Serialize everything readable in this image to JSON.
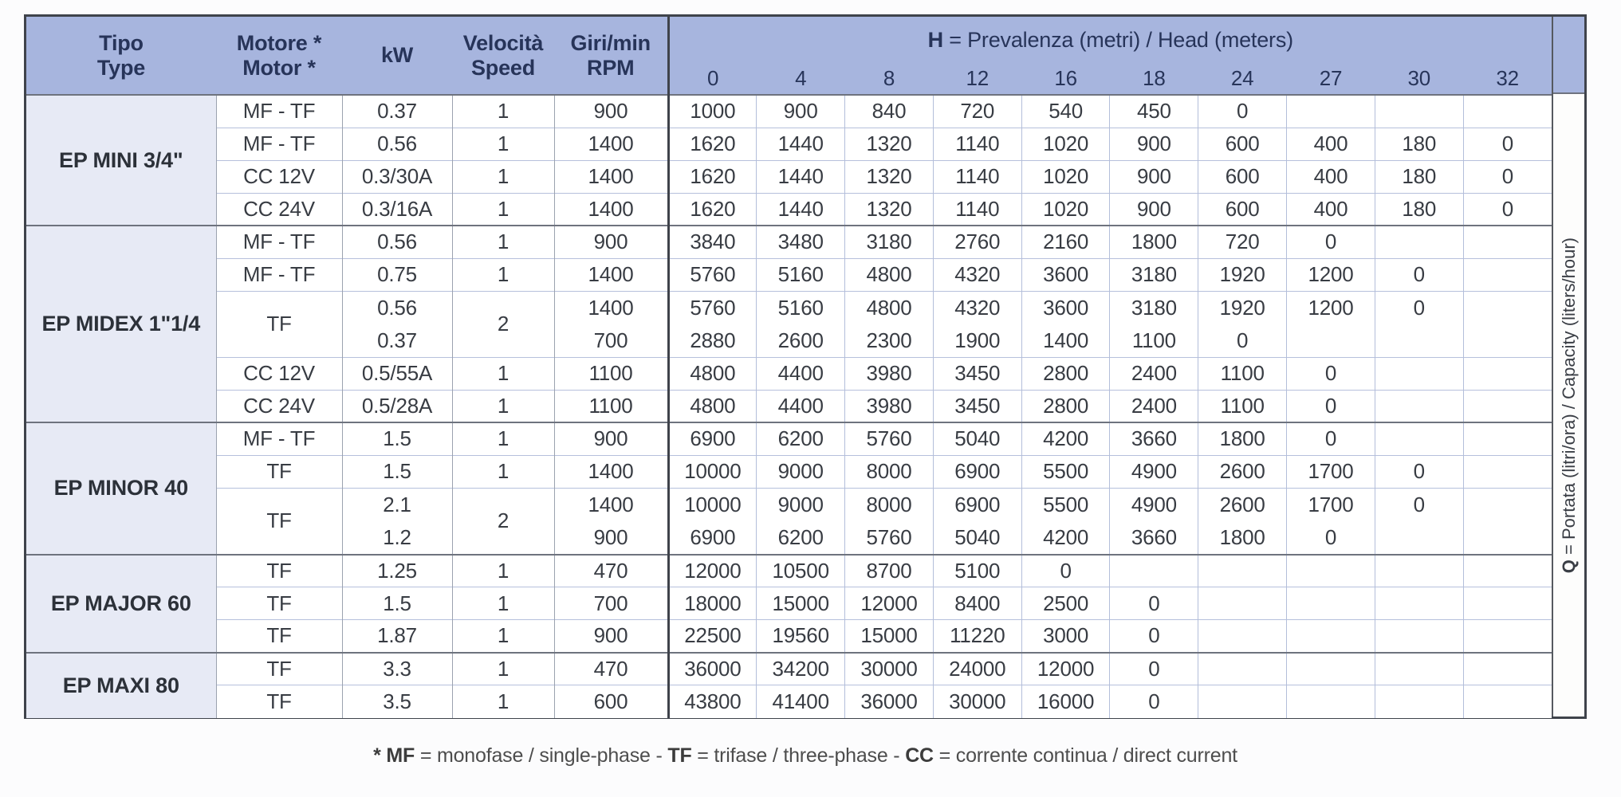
{
  "header": {
    "tipo": [
      "Tipo",
      "Type"
    ],
    "motore": [
      "Motore *",
      "Motor *"
    ],
    "kw": [
      "kW"
    ],
    "velocita": [
      "Velocità",
      "Speed"
    ],
    "giri": [
      "Giri/min",
      "RPM"
    ],
    "h_title": [
      {
        "text": "H",
        "bold": true
      },
      {
        "text": " = Prevalenza (metri) / Head (meters)",
        "bold": false
      }
    ],
    "h_values": [
      "0",
      "4",
      "8",
      "12",
      "16",
      "18",
      "24",
      "27",
      "30",
      "32"
    ]
  },
  "q_label": [
    {
      "text": "Q",
      "bold": true
    },
    {
      "text": " = Portata (litri/ora) / Capacity (liters/hour)",
      "bold": false
    }
  ],
  "groups": [
    {
      "type": "EP MINI 3/4\"",
      "rows": [
        {
          "motor": "MF - TF",
          "kw": [
            "0.37"
          ],
          "speed": "1",
          "rpm": [
            "900"
          ],
          "lines": [
            [
              "1000",
              "900",
              "840",
              "720",
              "540",
              "450",
              "0",
              "",
              "",
              ""
            ]
          ]
        },
        {
          "motor": "MF - TF",
          "kw": [
            "0.56"
          ],
          "speed": "1",
          "rpm": [
            "1400"
          ],
          "lines": [
            [
              "1620",
              "1440",
              "1320",
              "1140",
              "1020",
              "900",
              "600",
              "400",
              "180",
              "0"
            ]
          ]
        },
        {
          "motor": "CC 12V",
          "kw": [
            "0.3/30A"
          ],
          "speed": "1",
          "rpm": [
            "1400"
          ],
          "lines": [
            [
              "1620",
              "1440",
              "1320",
              "1140",
              "1020",
              "900",
              "600",
              "400",
              "180",
              "0"
            ]
          ]
        },
        {
          "motor": "CC 24V",
          "kw": [
            "0.3/16A"
          ],
          "speed": "1",
          "rpm": [
            "1400"
          ],
          "lines": [
            [
              "1620",
              "1440",
              "1320",
              "1140",
              "1020",
              "900",
              "600",
              "400",
              "180",
              "0"
            ]
          ]
        }
      ]
    },
    {
      "type": "EP MIDEX 1\"1/4",
      "rows": [
        {
          "motor": "MF - TF",
          "kw": [
            "0.56"
          ],
          "speed": "1",
          "rpm": [
            "900"
          ],
          "lines": [
            [
              "3840",
              "3480",
              "3180",
              "2760",
              "2160",
              "1800",
              "720",
              "0",
              "",
              ""
            ]
          ]
        },
        {
          "motor": "MF - TF",
          "kw": [
            "0.75"
          ],
          "speed": "1",
          "rpm": [
            "1400"
          ],
          "lines": [
            [
              "5760",
              "5160",
              "4800",
              "4320",
              "3600",
              "3180",
              "1920",
              "1200",
              "0",
              ""
            ]
          ]
        },
        {
          "motor": "TF",
          "kw": [
            "0.56",
            "0.37"
          ],
          "speed": "2",
          "rpm": [
            "1400",
            "700"
          ],
          "lines": [
            [
              "5760",
              "5160",
              "4800",
              "4320",
              "3600",
              "3180",
              "1920",
              "1200",
              "0",
              ""
            ],
            [
              "2880",
              "2600",
              "2300",
              "1900",
              "1400",
              "1100",
              "0",
              "",
              "",
              ""
            ]
          ]
        },
        {
          "motor": "CC 12V",
          "kw": [
            "0.5/55A"
          ],
          "speed": "1",
          "rpm": [
            "1100"
          ],
          "lines": [
            [
              "4800",
              "4400",
              "3980",
              "3450",
              "2800",
              "2400",
              "1100",
              "0",
              "",
              ""
            ]
          ]
        },
        {
          "motor": "CC 24V",
          "kw": [
            "0.5/28A"
          ],
          "speed": "1",
          "rpm": [
            "1100"
          ],
          "lines": [
            [
              "4800",
              "4400",
              "3980",
              "3450",
              "2800",
              "2400",
              "1100",
              "0",
              "",
              ""
            ]
          ]
        }
      ]
    },
    {
      "type": "EP MINOR 40",
      "rows": [
        {
          "motor": "MF - TF",
          "kw": [
            "1.5"
          ],
          "speed": "1",
          "rpm": [
            "900"
          ],
          "lines": [
            [
              "6900",
              "6200",
              "5760",
              "5040",
              "4200",
              "3660",
              "1800",
              "0",
              "",
              ""
            ]
          ]
        },
        {
          "motor": "TF",
          "kw": [
            "1.5"
          ],
          "speed": "1",
          "rpm": [
            "1400"
          ],
          "lines": [
            [
              "10000",
              "9000",
              "8000",
              "6900",
              "5500",
              "4900",
              "2600",
              "1700",
              "0",
              ""
            ]
          ]
        },
        {
          "motor": "TF",
          "kw": [
            "2.1",
            "1.2"
          ],
          "speed": "2",
          "rpm": [
            "1400",
            "900"
          ],
          "lines": [
            [
              "10000",
              "9000",
              "8000",
              "6900",
              "5500",
              "4900",
              "2600",
              "1700",
              "0",
              ""
            ],
            [
              "6900",
              "6200",
              "5760",
              "5040",
              "4200",
              "3660",
              "1800",
              "0",
              "",
              ""
            ]
          ]
        }
      ]
    },
    {
      "type": "EP MAJOR 60",
      "rows": [
        {
          "motor": "TF",
          "kw": [
            "1.25"
          ],
          "speed": "1",
          "rpm": [
            "470"
          ],
          "lines": [
            [
              "12000",
              "10500",
              "8700",
              "5100",
              "0",
              "",
              "",
              "",
              "",
              ""
            ]
          ]
        },
        {
          "motor": "TF",
          "kw": [
            "1.5"
          ],
          "speed": "1",
          "rpm": [
            "700"
          ],
          "lines": [
            [
              "18000",
              "15000",
              "12000",
              "8400",
              "2500",
              "0",
              "",
              "",
              "",
              ""
            ]
          ]
        },
        {
          "motor": "TF",
          "kw": [
            "1.87"
          ],
          "speed": "1",
          "rpm": [
            "900"
          ],
          "lines": [
            [
              "22500",
              "19560",
              "15000",
              "11220",
              "3000",
              "0",
              "",
              "",
              "",
              ""
            ]
          ]
        }
      ]
    },
    {
      "type": "EP MAXI 80",
      "rows": [
        {
          "motor": "TF",
          "kw": [
            "3.3"
          ],
          "speed": "1",
          "rpm": [
            "470"
          ],
          "lines": [
            [
              "36000",
              "34200",
              "30000",
              "24000",
              "12000",
              "0",
              "",
              "",
              "",
              ""
            ]
          ]
        },
        {
          "motor": "TF",
          "kw": [
            "3.5"
          ],
          "speed": "1",
          "rpm": [
            "600"
          ],
          "lines": [
            [
              "43800",
              "41400",
              "36000",
              "30000",
              "16000",
              "0",
              "",
              "",
              "",
              ""
            ]
          ]
        }
      ]
    }
  ],
  "footnote": [
    {
      "text": "* MF",
      "bold": true
    },
    {
      "text": " = monofase / single-phase - ",
      "bold": false
    },
    {
      "text": "TF",
      "bold": true
    },
    {
      "text": " = trifase / three-phase - ",
      "bold": false
    },
    {
      "text": "CC",
      "bold": true
    },
    {
      "text": " = corrente continua / direct current",
      "bold": false
    }
  ],
  "colors": {
    "header_bg": "#a7b5de",
    "type_column_bg": "#e7eaf5",
    "header_text": "#273459",
    "data_text": "#383c43",
    "outer_border": "#3f434b",
    "group_separator": "#6e737e",
    "grid_line": "#b6c0dc"
  }
}
